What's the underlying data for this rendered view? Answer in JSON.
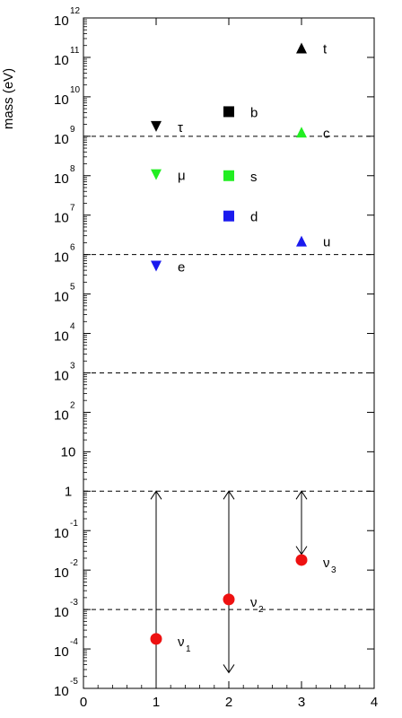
{
  "chart_data": {
    "type": "scatter",
    "title": "",
    "xlabel": "",
    "ylabel": "mass (eV)",
    "xlim": [
      0,
      4
    ],
    "ylim_log10": [
      -5,
      12
    ],
    "y_scale": "log",
    "x_ticks": [
      "0",
      "1",
      "2",
      "3",
      "4"
    ],
    "y_ticks": [
      {
        "base": "10",
        "exp": "-5"
      },
      {
        "base": "10",
        "exp": "-4"
      },
      {
        "base": "10",
        "exp": "-3"
      },
      {
        "base": "10",
        "exp": "-2"
      },
      {
        "base": "10",
        "exp": "-1"
      },
      {
        "base": "1",
        "exp": ""
      },
      {
        "base": "10",
        "exp": ""
      },
      {
        "base": "10",
        "exp": "2"
      },
      {
        "base": "10",
        "exp": "3"
      },
      {
        "base": "10",
        "exp": "4"
      },
      {
        "base": "10",
        "exp": "5"
      },
      {
        "base": "10",
        "exp": "6"
      },
      {
        "base": "10",
        "exp": "7"
      },
      {
        "base": "10",
        "exp": "8"
      },
      {
        "base": "10",
        "exp": "9"
      },
      {
        "base": "10",
        "exp": "10"
      },
      {
        "base": "10",
        "exp": "11"
      },
      {
        "base": "10",
        "exp": "12"
      }
    ],
    "dashed_lines_log10": [
      9,
      6,
      3,
      0,
      -3
    ],
    "grid": false,
    "particles": [
      {
        "label": "τ",
        "x": 1,
        "mass_eV": 1780000000.0,
        "marker": "triangle-down",
        "color": "#000000"
      },
      {
        "label": "μ",
        "x": 1,
        "mass_eV": 106000000.0,
        "marker": "triangle-down",
        "color": "#22ee22"
      },
      {
        "label": "e",
        "x": 1,
        "mass_eV": 510000.0,
        "marker": "triangle-down",
        "color": "#1a1aee"
      },
      {
        "label": "b",
        "x": 2,
        "mass_eV": 4200000000.0,
        "marker": "square",
        "color": "#000000"
      },
      {
        "label": "s",
        "x": 2,
        "mass_eV": 100000000.0,
        "marker": "square",
        "color": "#22ee22"
      },
      {
        "label": "d",
        "x": 2,
        "mass_eV": 9500000.0,
        "marker": "square",
        "color": "#1a1aee"
      },
      {
        "label": "t",
        "x": 3,
        "mass_eV": 173000000000.0,
        "marker": "triangle-up",
        "color": "#000000"
      },
      {
        "label": "c",
        "x": 3,
        "mass_eV": 1270000000.0,
        "marker": "triangle-up",
        "color": "#22ee22"
      },
      {
        "label": "u",
        "x": 3,
        "mass_eV": 2200000.0,
        "marker": "triangle-up",
        "color": "#1a1aee"
      }
    ],
    "neutrinos": [
      {
        "label": "ν",
        "subscript": "1",
        "x": 1,
        "mass_eV": 0.00018,
        "range_log10": [
          -5,
          0
        ],
        "arrow_top": true,
        "arrow_bottom": false,
        "color": "#ee1111"
      },
      {
        "label": "ν",
        "subscript": "2",
        "x": 2,
        "mass_eV": 0.0018,
        "range_log10": [
          -4.6,
          0
        ],
        "arrow_top": true,
        "arrow_bottom": true,
        "color": "#ee1111"
      },
      {
        "label": "ν",
        "subscript": "3",
        "x": 3,
        "mass_eV": 0.018,
        "range_log10": [
          -1.6,
          0
        ],
        "arrow_top": true,
        "arrow_bottom": true,
        "color": "#ee1111"
      }
    ]
  }
}
